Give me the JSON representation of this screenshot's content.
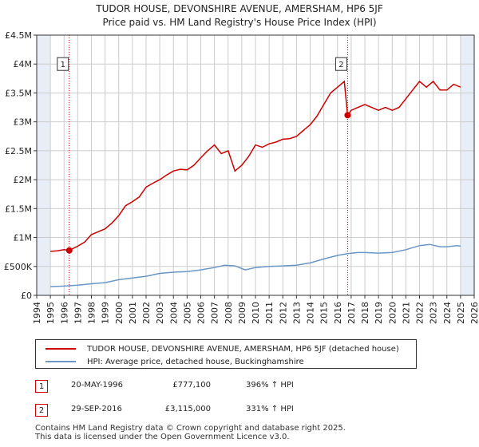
{
  "title_line1": "TUDOR HOUSE, DEVONSHIRE AVENUE, AMERSHAM, HP6 5JF",
  "title_line2": "Price paid vs. HM Land Registry's House Price Index (HPI)",
  "colors": {
    "price_line": "#cc0000",
    "hpi_line": "#6a96c8",
    "marker": "#cc0000",
    "shade": "#e8eef7",
    "grid": "#cccccc"
  },
  "legend": {
    "price_label": "TUDOR HOUSE, DEVONSHIRE AVENUE, AMERSHAM, HP6 5JF (detached house)",
    "hpi_label": "HPI: Average price, detached house, Buckinghamshire"
  },
  "sales": [
    {
      "num": "1",
      "date": "20-MAY-1996",
      "price": "£777,100",
      "hpi": "396% ↑ HPI"
    },
    {
      "num": "2",
      "date": "29-SEP-2016",
      "price": "£3,115,000",
      "hpi": "331% ↑ HPI"
    }
  ],
  "footer": {
    "line1": "Contains HM Land Registry data © Crown copyright and database right 2025.",
    "line2": "This data is licensed under the Open Government Licence v3.0."
  },
  "chart_data": {
    "type": "line",
    "title": "Price paid vs. HM Land Registry's House Price Index (HPI)",
    "xlim": [
      1994,
      2026
    ],
    "ylim": [
      0,
      4500000
    ],
    "x_ticks": [
      1994,
      1995,
      1996,
      1997,
      1998,
      1999,
      2000,
      2001,
      2002,
      2003,
      2004,
      2005,
      2006,
      2007,
      2008,
      2009,
      2010,
      2011,
      2012,
      2013,
      2014,
      2015,
      2016,
      2017,
      2018,
      2019,
      2020,
      2021,
      2022,
      2023,
      2024,
      2025,
      2026
    ],
    "y_ticks": [
      {
        "value": 0,
        "label": "£0"
      },
      {
        "value": 500000,
        "label": "£500K"
      },
      {
        "value": 1000000,
        "label": "£1M"
      },
      {
        "value": 1500000,
        "label": "£1.5M"
      },
      {
        "value": 2000000,
        "label": "£2M"
      },
      {
        "value": 2500000,
        "label": "£2.5M"
      },
      {
        "value": 3000000,
        "label": "£3M"
      },
      {
        "value": 3500000,
        "label": "£3.5M"
      },
      {
        "value": 4000000,
        "label": "£4M"
      },
      {
        "value": 4500000,
        "label": "£4.5M"
      }
    ],
    "shaded_ranges": [
      [
        1994,
        1995
      ],
      [
        2025,
        2026
      ]
    ],
    "series": [
      {
        "name": "TUDOR HOUSE, DEVONSHIRE AVENUE, AMERSHAM, HP6 5JF (detached house)",
        "x": [
          1995.0,
          1995.5,
          1996.0,
          1996.38,
          1997.0,
          1997.5,
          1998.0,
          1998.5,
          1999.0,
          1999.5,
          2000.0,
          2000.5,
          2001.0,
          2001.5,
          2002.0,
          2002.5,
          2003.0,
          2003.5,
          2004.0,
          2004.5,
          2005.0,
          2005.5,
          2006.0,
          2006.5,
          2007.0,
          2007.5,
          2008.0,
          2008.5,
          2009.0,
          2009.5,
          2010.0,
          2010.5,
          2011.0,
          2011.5,
          2012.0,
          2012.5,
          2013.0,
          2013.5,
          2014.0,
          2014.5,
          2015.0,
          2015.5,
          2016.0,
          2016.5,
          2016.74,
          2017.0,
          2017.5,
          2018.0,
          2018.5,
          2019.0,
          2019.5,
          2020.0,
          2020.5,
          2021.0,
          2021.5,
          2022.0,
          2022.5,
          2023.0,
          2023.5,
          2024.0,
          2024.5,
          2025.0
        ],
        "values": [
          760000,
          770000,
          790000,
          777100,
          850000,
          920000,
          1050000,
          1100000,
          1150000,
          1250000,
          1380000,
          1550000,
          1620000,
          1700000,
          1870000,
          1940000,
          2000000,
          2080000,
          2150000,
          2180000,
          2170000,
          2250000,
          2380000,
          2500000,
          2600000,
          2450000,
          2500000,
          2150000,
          2250000,
          2400000,
          2600000,
          2560000,
          2620000,
          2650000,
          2700000,
          2710000,
          2750000,
          2850000,
          2950000,
          3100000,
          3300000,
          3500000,
          3600000,
          3700000,
          3115000,
          3200000,
          3250000,
          3300000,
          3250000,
          3200000,
          3250000,
          3200000,
          3250000,
          3400000,
          3550000,
          3700000,
          3600000,
          3700000,
          3550000,
          3550000,
          3650000,
          3600000
        ]
      },
      {
        "name": "HPI: Average price, detached house, Buckinghamshire",
        "x": [
          1995.0,
          1996.0,
          1997.0,
          1998.0,
          1999.0,
          2000.0,
          2001.0,
          2002.0,
          2003.0,
          2004.0,
          2005.0,
          2006.0,
          2007.0,
          2007.75,
          2008.5,
          2009.25,
          2010.0,
          2011.0,
          2012.0,
          2013.0,
          2014.0,
          2015.0,
          2016.0,
          2016.74,
          2017.5,
          2018.0,
          2019.0,
          2020.0,
          2021.0,
          2022.0,
          2022.75,
          2023.5,
          2024.0,
          2024.75,
          2025.0
        ],
        "values": [
          150000,
          160000,
          175000,
          200000,
          220000,
          270000,
          300000,
          330000,
          380000,
          400000,
          410000,
          440000,
          480000,
          520000,
          510000,
          440000,
          480000,
          500000,
          510000,
          520000,
          560000,
          630000,
          690000,
          720000,
          740000,
          740000,
          730000,
          740000,
          790000,
          860000,
          880000,
          840000,
          840000,
          860000,
          850000
        ]
      }
    ],
    "sale_markers": [
      {
        "label": "1",
        "x": 1996.38,
        "value": 777100
      },
      {
        "label": "2",
        "x": 2016.74,
        "value": 3115000
      }
    ]
  }
}
